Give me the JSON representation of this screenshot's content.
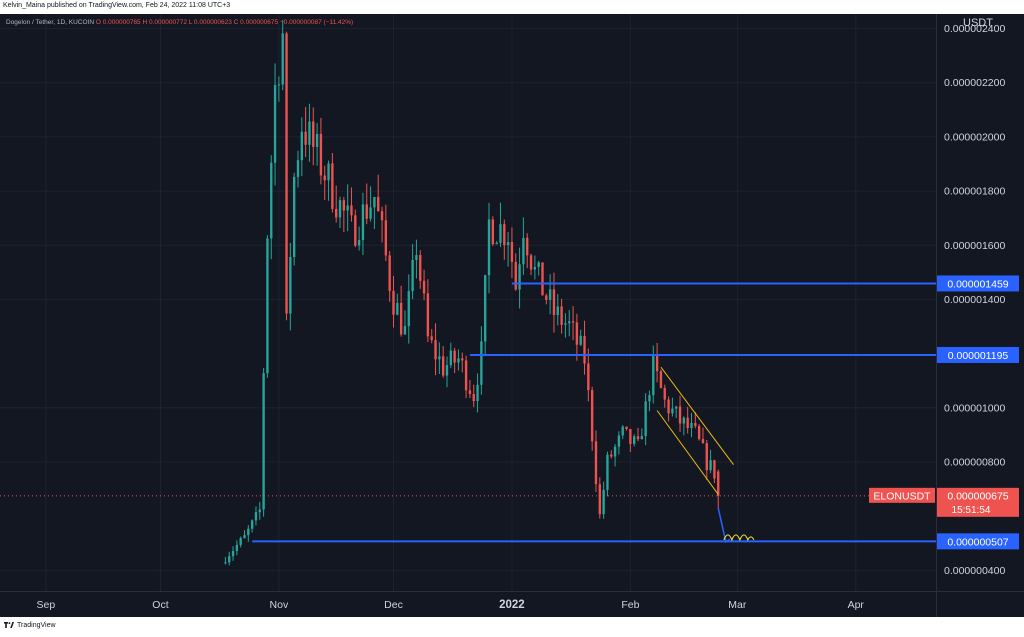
{
  "header": {
    "published": "Kelvin_Maina published on TradingView.com, Feb 24, 2022 11:08 UTC+3"
  },
  "legend": {
    "symbol": "Dogelon / Tether, 1D, KUCOIN",
    "ohlc": "O 0.000000765  H 0.000000772  L 0.000000623  C 0.000000675  −0.000000087 (−11.42%)"
  },
  "footer": {
    "brand": "TradingView"
  },
  "colors": {
    "background": "#131722",
    "up": "#26a69a",
    "down": "#ef5350",
    "level_line": "#2962ff",
    "channel": "#f0b90b",
    "grid": "#1e222d",
    "axis_text": "#d1d4dc"
  },
  "chart_data": {
    "type": "candlestick",
    "title": "Dogelon / Tether, 1D, KUCOIN",
    "symbol": "ELONUSDT",
    "currency_label": "USDT",
    "x_ticks": [
      "Sep",
      "Oct",
      "Nov",
      "Dec",
      "2022",
      "Feb",
      "Mar",
      "Apr"
    ],
    "x_range": [
      "2021-08-20",
      "2022-04-22"
    ],
    "y_ticks": [
      "0.000002400",
      "0.000002200",
      "0.000002000",
      "0.000001800",
      "0.000001600",
      "0.000001400",
      "0.000001000",
      "0.000000800",
      "0.000000400"
    ],
    "y_range": [
      3.2e-07,
      2.45e-06
    ],
    "grid": true,
    "levels": [
      {
        "price": 1.459e-06,
        "label": "0.000001459",
        "start": "2022-01-01"
      },
      {
        "price": 1.195e-06,
        "label": "0.000001195",
        "start": "2021-12-21"
      },
      {
        "price": 5.07e-07,
        "label": "0.000000507",
        "start": "2021-10-25"
      }
    ],
    "last_price": {
      "label": "0.000000675",
      "value": 6.75e-07,
      "countdown": "15:51:54",
      "tag": "ELONUSDT"
    },
    "channel": {
      "upper": [
        [
          "2022-02-09",
          1.15e-06
        ],
        [
          "2022-02-28",
          7.9e-07
        ]
      ],
      "lower": [
        [
          "2022-02-08",
          9.9e-07
        ],
        [
          "2022-02-24",
          6.8e-07
        ]
      ]
    },
    "projection": [
      [
        "2022-02-24",
        6.3e-07
      ],
      [
        "2022-02-26",
        5.05e-07
      ],
      [
        "2022-02-27",
        5.15e-07
      ]
    ],
    "anchors": [
      {
        "date": "2021-10-18",
        "close": 4.5e-07
      },
      {
        "date": "2021-10-23",
        "close": 5.2e-07
      },
      {
        "date": "2021-10-27",
        "close": 6.2e-07
      },
      {
        "date": "2021-10-29",
        "close": 1.65e-06
      },
      {
        "date": "2021-10-31",
        "close": 2.18e-06
      },
      {
        "date": "2021-11-02",
        "close": 2.38e-06
      },
      {
        "date": "2021-11-03",
        "close": 1.3e-06
      },
      {
        "date": "2021-11-05",
        "close": 1.85e-06
      },
      {
        "date": "2021-11-07",
        "close": 2.05e-06
      },
      {
        "date": "2021-11-12",
        "close": 1.9e-06
      },
      {
        "date": "2021-11-20",
        "close": 1.65e-06
      },
      {
        "date": "2021-11-26",
        "close": 1.78e-06
      },
      {
        "date": "2021-12-01",
        "close": 1.4e-06
      },
      {
        "date": "2021-12-04",
        "close": 1.28e-06
      },
      {
        "date": "2021-12-07",
        "close": 1.6e-06
      },
      {
        "date": "2021-12-10",
        "close": 1.25e-06
      },
      {
        "date": "2021-12-14",
        "close": 1.15e-06
      },
      {
        "date": "2021-12-18",
        "close": 1.18e-06
      },
      {
        "date": "2021-12-22",
        "close": 1.05e-06
      },
      {
        "date": "2021-12-24",
        "close": 1.2e-06
      },
      {
        "date": "2021-12-26",
        "close": 1.68e-06
      },
      {
        "date": "2021-12-31",
        "close": 1.65e-06
      },
      {
        "date": "2022-01-02",
        "close": 1.45e-06
      },
      {
        "date": "2022-01-04",
        "close": 1.68e-06
      },
      {
        "date": "2022-01-07",
        "close": 1.5e-06
      },
      {
        "date": "2022-01-12",
        "close": 1.35e-06
      },
      {
        "date": "2022-01-16",
        "close": 1.3e-06
      },
      {
        "date": "2022-01-20",
        "close": 1.18e-06
      },
      {
        "date": "2022-01-22",
        "close": 9e-07
      },
      {
        "date": "2022-01-24",
        "close": 6e-07
      },
      {
        "date": "2022-01-26",
        "close": 8e-07
      },
      {
        "date": "2022-01-30",
        "close": 9e-07
      },
      {
        "date": "2022-02-03",
        "close": 8.5e-07
      },
      {
        "date": "2022-02-07",
        "close": 1.15e-06
      },
      {
        "date": "2022-02-10",
        "close": 1.02e-06
      },
      {
        "date": "2022-02-14",
        "close": 9.5e-07
      },
      {
        "date": "2022-02-18",
        "close": 9e-07
      },
      {
        "date": "2022-02-21",
        "close": 8e-07
      },
      {
        "date": "2022-02-23",
        "close": 7.6e-07
      },
      {
        "date": "2022-02-24",
        "close": 6.75e-07
      }
    ]
  }
}
